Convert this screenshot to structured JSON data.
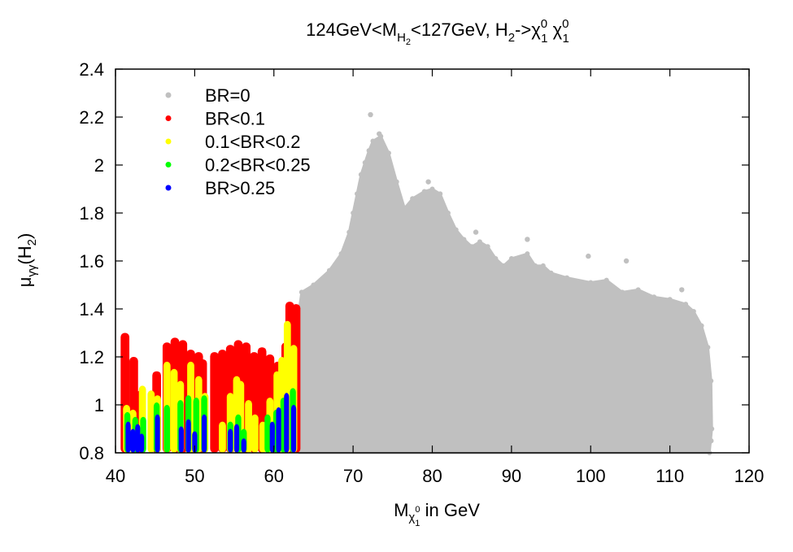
{
  "chart_data": {
    "type": "scatter",
    "title": {
      "base": "124GeV<M",
      "sub1": "H",
      "sub1b": "2",
      "mid": "<127GeV,  H",
      "sub2": "2",
      "tail": "->χ",
      "sup3": "0",
      "sub3": "1",
      "tail2": " χ",
      "sup4": "0",
      "sub4": "1"
    },
    "xlabel": {
      "base": "M",
      "sub": "χ",
      "subsub": "1",
      "supsub": "0",
      "tail": " in GeV"
    },
    "ylabel": {
      "base": "μ",
      "sub": "γγ",
      "tail": "(H",
      "sub2": "2",
      "close": ")"
    },
    "xlim": [
      40,
      120
    ],
    "ylim": [
      0.8,
      2.4
    ],
    "xticks": [
      "40",
      "50",
      "60",
      "70",
      "80",
      "90",
      "100",
      "110",
      "120"
    ],
    "yticks": [
      "0.8",
      "1",
      "1.2",
      "1.4",
      "1.6",
      "1.8",
      "2",
      "2.2",
      "2.4"
    ],
    "legend_position": "top-left",
    "series": [
      {
        "name": "BR=0",
        "color": "#c0c0c0",
        "envelope": [
          [
            63.5,
            1.47
          ],
          [
            65,
            1.5
          ],
          [
            67,
            1.56
          ],
          [
            68.5,
            1.63
          ],
          [
            69.5,
            1.72
          ],
          [
            70,
            1.8
          ],
          [
            70.5,
            1.88
          ],
          [
            71,
            1.96
          ],
          [
            71.5,
            2.01
          ],
          [
            72,
            2.06
          ],
          [
            72.5,
            2.1
          ],
          [
            73.5,
            2.12
          ],
          [
            74.5,
            2.05
          ],
          [
            75.5,
            1.93
          ],
          [
            76.5,
            1.82
          ],
          [
            77.5,
            1.86
          ],
          [
            79,
            1.89
          ],
          [
            80,
            1.9
          ],
          [
            81,
            1.88
          ],
          [
            82,
            1.8
          ],
          [
            83,
            1.73
          ],
          [
            84,
            1.69
          ],
          [
            85,
            1.66
          ],
          [
            86,
            1.68
          ],
          [
            87,
            1.66
          ],
          [
            88,
            1.61
          ],
          [
            89,
            1.58
          ],
          [
            90,
            1.61
          ],
          [
            92,
            1.63
          ],
          [
            93,
            1.58
          ],
          [
            94,
            1.58
          ],
          [
            95,
            1.55
          ],
          [
            97,
            1.53
          ],
          [
            100,
            1.51
          ],
          [
            102,
            1.52
          ],
          [
            104,
            1.47
          ],
          [
            106,
            1.48
          ],
          [
            108,
            1.45
          ],
          [
            110,
            1.44
          ],
          [
            112,
            1.42
          ],
          [
            113,
            1.39
          ],
          [
            114,
            1.33
          ],
          [
            114.8,
            1.24
          ],
          [
            115.2,
            1.1
          ],
          [
            115.3,
            0.9
          ],
          [
            115,
            0.8
          ]
        ],
        "outliers": [
          [
            72.2,
            2.21
          ],
          [
            73.3,
            2.13
          ],
          [
            79.5,
            1.93
          ],
          [
            85.5,
            1.72
          ],
          [
            92,
            1.69
          ],
          [
            99.7,
            1.62
          ],
          [
            104.5,
            1.6
          ],
          [
            111.5,
            1.48
          ],
          [
            115.2,
            0.85
          ]
        ]
      },
      {
        "name": "BR<0.1",
        "color": "#ff0000",
        "ranges": [
          [
            41.2,
            1.3
          ],
          [
            42.3,
            1.2
          ],
          [
            43.2,
            1.06
          ],
          [
            45.2,
            1.14
          ],
          [
            46.5,
            1.26
          ],
          [
            47.5,
            1.28
          ],
          [
            48.5,
            1.27
          ],
          [
            49.5,
            1.23
          ],
          [
            50.5,
            1.22
          ],
          [
            51,
            1.19
          ],
          [
            52.5,
            1.22
          ],
          [
            53.5,
            1.23
          ],
          [
            54.5,
            1.25
          ],
          [
            55.5,
            1.27
          ],
          [
            56.5,
            1.26
          ],
          [
            57.5,
            1.22
          ],
          [
            58.5,
            1.24
          ],
          [
            59.5,
            1.21
          ],
          [
            60.5,
            1.18
          ],
          [
            61.5,
            1.26
          ],
          [
            62,
            1.43
          ],
          [
            62.8,
            1.42
          ]
        ]
      },
      {
        "name": "0.1<BR<0.2",
        "color": "#ffff00",
        "ranges": [
          [
            41.4,
            1.0
          ],
          [
            42.2,
            0.98
          ],
          [
            43.4,
            1.08
          ],
          [
            44.5,
            1.06
          ],
          [
            45.3,
            1.04
          ],
          [
            46.5,
            1.18
          ],
          [
            47.4,
            1.15
          ],
          [
            48.2,
            1.1
          ],
          [
            49.5,
            1.18
          ],
          [
            50.5,
            1.12
          ],
          [
            51.3,
            1.05
          ],
          [
            53.5,
            0.93
          ],
          [
            54.5,
            1.05
          ],
          [
            55.3,
            1.12
          ],
          [
            55.8,
            1.1
          ],
          [
            56.8,
            1.02
          ],
          [
            57.6,
            0.96
          ],
          [
            58.6,
            0.93
          ],
          [
            59.5,
            1.03
          ],
          [
            60.4,
            1.14
          ],
          [
            61,
            1.2
          ],
          [
            61.7,
            1.35
          ],
          [
            62.5,
            1.25
          ]
        ]
      },
      {
        "name": "0.2<BR<0.25",
        "color": "#00ff00",
        "ranges": [
          [
            41.5,
            0.97
          ],
          [
            42.5,
            0.95
          ],
          [
            43.5,
            0.95
          ],
          [
            45.2,
            1.01
          ],
          [
            46.5,
            1.0
          ],
          [
            48.2,
            1.02
          ],
          [
            49.2,
            1.04
          ],
          [
            50.2,
            1.03
          ],
          [
            51.2,
            1.04
          ],
          [
            54.5,
            0.93
          ],
          [
            55.5,
            0.96
          ],
          [
            56.2,
            0.9
          ],
          [
            59.2,
            0.96
          ],
          [
            60.3,
            0.98
          ],
          [
            61.2,
            1.03
          ],
          [
            62.4,
            1.07
          ]
        ]
      },
      {
        "name": "BR>0.25",
        "color": "#0000ff",
        "ranges": [
          [
            41.6,
            0.93
          ],
          [
            42.2,
            0.9
          ],
          [
            42.8,
            0.92
          ],
          [
            43.3,
            0.88
          ],
          [
            45.3,
            0.96
          ],
          [
            48.3,
            0.91
          ],
          [
            49.2,
            0.94
          ],
          [
            50,
            0.89
          ],
          [
            51.2,
            0.96
          ],
          [
            54.5,
            0.9
          ],
          [
            55.3,
            0.92
          ],
          [
            56.2,
            0.86
          ],
          [
            59.8,
            0.93
          ],
          [
            60.6,
            0.99
          ],
          [
            61.6,
            1.05
          ],
          [
            62.5,
            1.0
          ]
        ]
      }
    ]
  }
}
